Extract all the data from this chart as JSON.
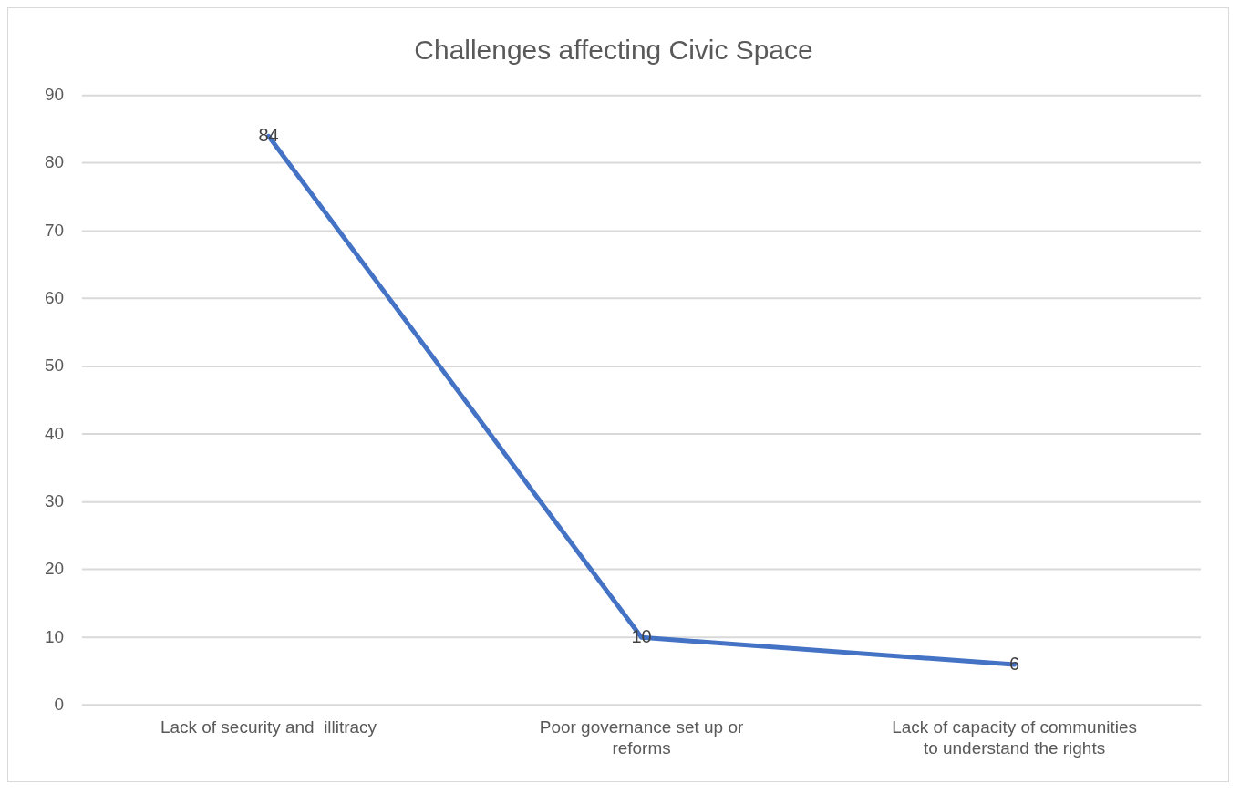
{
  "chart_data": {
    "type": "line",
    "title": "Challenges affecting Civic Space",
    "categories": [
      "Lack of security and  illitracy",
      "Poor governance set up or reforms",
      "Lack of capacity of communities to understand the rights"
    ],
    "series": [
      {
        "color": "#4472c4",
        "values": [
          84,
          10,
          6
        ]
      }
    ],
    "ylim": [
      0,
      90
    ],
    "yticks": [
      0,
      10,
      20,
      30,
      40,
      50,
      60,
      70,
      80,
      90
    ],
    "grid": "y",
    "legend": false,
    "marker": "none",
    "line_style": "solid",
    "data_labels": true
  }
}
